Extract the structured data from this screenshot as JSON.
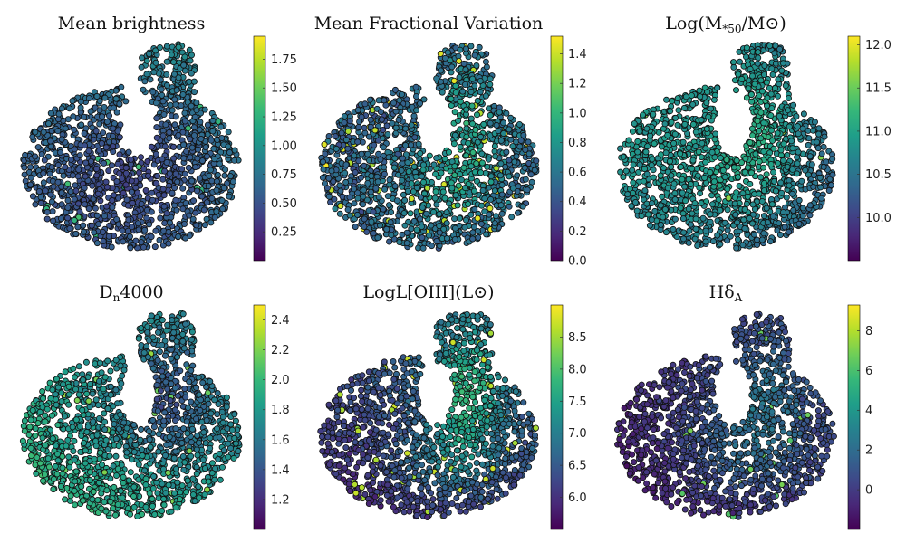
{
  "colors": {
    "colormap": [
      "#440154",
      "#482878",
      "#3e4989",
      "#31688e",
      "#26828e",
      "#1f9e89",
      "#35b779",
      "#6ece58",
      "#b5de2b",
      "#fde725"
    ],
    "point_edge": "#111111"
  },
  "chart_data": [
    {
      "type": "scatter",
      "title_main": "Mean brightness",
      "title_sub": "",
      "title_tail": "",
      "colorbar": {
        "range": [
          0.0,
          1.95
        ],
        "ticks": [
          0.25,
          0.5,
          0.75,
          1.0,
          1.25,
          1.5,
          1.75
        ],
        "tick_labels": [
          "0.25",
          "0.50",
          "0.75",
          "1.00",
          "1.25",
          "1.50",
          "1.75"
        ]
      },
      "pattern": {
        "base": 0.42,
        "noise": 0.12,
        "field": [
          0.1,
          0.25,
          -0.05,
          -0.05,
          0.0
        ],
        "hot_fraction": 0.02,
        "hot_value": 1.3
      }
    },
    {
      "type": "scatter",
      "title_main": "Mean Fractional Variation",
      "title_sub": "",
      "title_tail": "",
      "colorbar": {
        "range": [
          0.0,
          1.52
        ],
        "ticks": [
          0.0,
          0.2,
          0.4,
          0.6,
          0.8,
          1.0,
          1.2,
          1.4
        ],
        "tick_labels": [
          "0.0",
          "0.2",
          "0.4",
          "0.6",
          "0.8",
          "1.0",
          "1.2",
          "1.4"
        ]
      },
      "pattern": {
        "base": 0.5,
        "noise": 0.22,
        "field": [
          0.0,
          0.0,
          0.0,
          0.35,
          0.2
        ],
        "hot_fraction": 0.05,
        "hot_value": 1.4
      }
    },
    {
      "type": "scatter",
      "title_main": "Log(M",
      "title_sub": "*50",
      "title_tail": "/M⊙)",
      "colorbar": {
        "range": [
          9.5,
          12.1
        ],
        "ticks": [
          10.0,
          10.5,
          11.0,
          11.5,
          12.0
        ],
        "tick_labels": [
          "10.0",
          "10.5",
          "11.0",
          "11.5",
          "12.0"
        ]
      },
      "pattern": {
        "base": 10.85,
        "noise": 0.18,
        "field": [
          0.15,
          -0.25,
          0.2,
          0.35,
          0.1
        ],
        "hot_fraction": 0.01,
        "hot_value": 11.6
      }
    },
    {
      "type": "scatter",
      "title_main": "D",
      "title_sub": "n",
      "title_tail": "4000",
      "colorbar": {
        "range": [
          1.0,
          2.5
        ],
        "ticks": [
          1.2,
          1.4,
          1.6,
          1.8,
          2.0,
          2.2,
          2.4
        ],
        "tick_labels": [
          "1.2",
          "1.4",
          "1.6",
          "1.8",
          "2.0",
          "2.2",
          "2.4"
        ]
      },
      "pattern": {
        "base": 1.62,
        "noise": 0.14,
        "field": [
          -0.1,
          0.2,
          0.12,
          -0.25,
          0.1
        ],
        "hot_fraction": 0.02,
        "hot_value": 2.2
      }
    },
    {
      "type": "scatter",
      "title_main": "LogL[OIII](L⊙)",
      "title_sub": "",
      "title_tail": "",
      "colorbar": {
        "range": [
          5.5,
          9.0
        ],
        "ticks": [
          6.0,
          6.5,
          7.0,
          7.5,
          8.0,
          8.5
        ],
        "tick_labels": [
          "6.0",
          "6.5",
          "7.0",
          "7.5",
          "8.0",
          "8.5"
        ]
      },
      "pattern": {
        "base": 6.3,
        "noise": 0.35,
        "field": [
          0.3,
          0.0,
          -0.2,
          1.3,
          0.5
        ],
        "hot_fraction": 0.03,
        "hot_value": 8.6
      }
    },
    {
      "type": "scatter",
      "title_main": "Hδ",
      "title_sub": "A",
      "title_tail": "",
      "colorbar": {
        "range": [
          -2.0,
          9.3
        ],
        "ticks": [
          0,
          2,
          4,
          6,
          8
        ],
        "tick_labels": [
          "0",
          "2",
          "4",
          "6",
          "8"
        ]
      },
      "pattern": {
        "base": 1.0,
        "noise": 0.9,
        "field": [
          0.5,
          -1.2,
          -0.8,
          1.5,
          0.6
        ],
        "hot_fraction": 0.02,
        "hot_value": 6.5
      }
    }
  ]
}
